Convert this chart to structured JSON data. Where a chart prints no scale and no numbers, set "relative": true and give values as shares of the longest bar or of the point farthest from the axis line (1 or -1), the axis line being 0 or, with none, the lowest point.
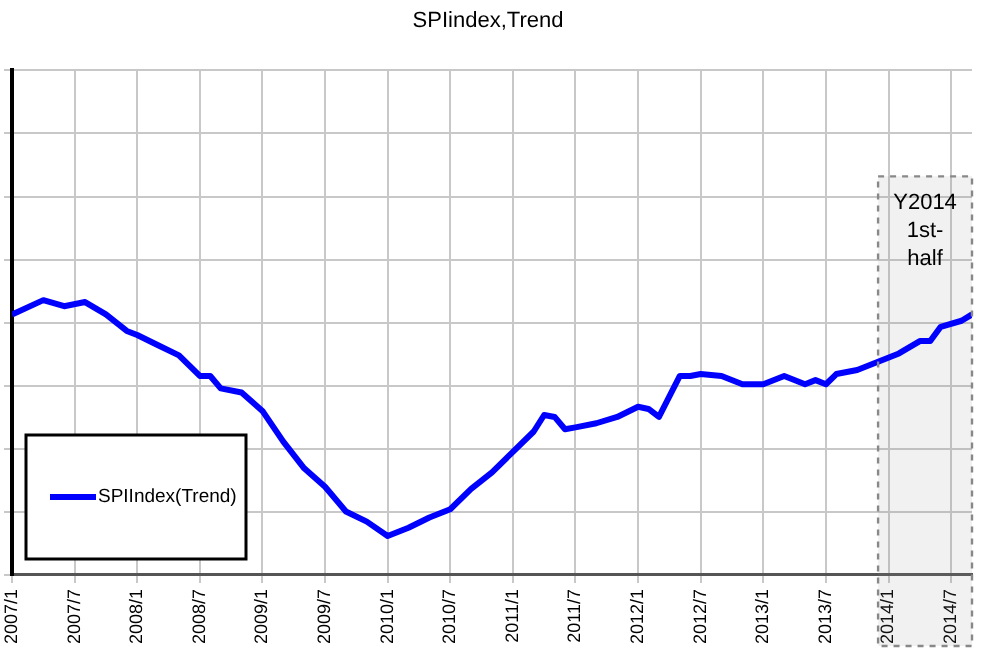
{
  "chart_data": {
    "type": "line",
    "title": "SPIindex,Trend",
    "relative": true,
    "grid": true,
    "legend": "bottom left",
    "marker": "none",
    "xlim": [
      "2007-01",
      "2014-09"
    ],
    "xticks": [
      {
        "value": "2007-01",
        "label": "2007/1"
      },
      {
        "value": "2007-07",
        "label": "2007/7"
      },
      {
        "value": "2008-01",
        "label": "2008/1"
      },
      {
        "value": "2008-07",
        "label": "2008/7"
      },
      {
        "value": "2009-01",
        "label": "2009/1"
      },
      {
        "value": "2009-07",
        "label": "2009/7"
      },
      {
        "value": "2010-01",
        "label": "2010/1"
      },
      {
        "value": "2010-07",
        "label": "2010/7"
      },
      {
        "value": "2011-01",
        "label": "2011/1"
      },
      {
        "value": "2011-07",
        "label": "2011/7"
      },
      {
        "value": "2012-01",
        "label": "2012/1"
      },
      {
        "value": "2012-07",
        "label": "2012/7"
      },
      {
        "value": "2013-01",
        "label": "2013/1"
      },
      {
        "value": "2013-07",
        "label": "2013/7"
      },
      {
        "value": "2014-01",
        "label": "2014/1"
      },
      {
        "value": "2014-07",
        "label": "2014/7"
      }
    ],
    "x": [
      "2007-01",
      "2007-04",
      "2007-06",
      "2007-08",
      "2007-10",
      "2007-12",
      "2008-01",
      "2008-03",
      "2008-05",
      "2008-07",
      "2008-08",
      "2008-09",
      "2008-11",
      "2009-01",
      "2009-03",
      "2009-05",
      "2009-07",
      "2009-09",
      "2009-11",
      "2010-01",
      "2010-03",
      "2010-05",
      "2010-07",
      "2010-09",
      "2010-11",
      "2011-01",
      "2011-03",
      "2011-04",
      "2011-05",
      "2011-06",
      "2011-07",
      "2011-09",
      "2011-11",
      "2012-01",
      "2012-02",
      "2012-03",
      "2012-05",
      "2012-06",
      "2012-07",
      "2012-09",
      "2012-11",
      "2013-01",
      "2013-03",
      "2013-05",
      "2013-06",
      "2013-07",
      "2013-08",
      "2013-10",
      "2013-12",
      "2014-02",
      "2014-04",
      "2014-05",
      "2014-06",
      "2014-08",
      "2014-09"
    ],
    "series": [
      {
        "name": "SPIIndex(Trend)",
        "color": "#0000ff",
        "values": [
          0.948,
          1,
          0.978,
          0.993,
          0.948,
          0.888,
          0.873,
          0.836,
          0.799,
          0.724,
          0.724,
          0.679,
          0.664,
          0.597,
          0.485,
          0.388,
          0.321,
          0.231,
          0.194,
          0.142,
          0.172,
          0.209,
          0.239,
          0.313,
          0.373,
          0.448,
          0.522,
          0.582,
          0.575,
          0.53,
          0.537,
          0.552,
          0.575,
          0.612,
          0.604,
          0.575,
          0.724,
          0.724,
          0.731,
          0.724,
          0.694,
          0.694,
          0.724,
          0.694,
          0.709,
          0.694,
          0.731,
          0.746,
          0.776,
          0.806,
          0.851,
          0.851,
          0.903,
          0.925,
          0.948
        ]
      }
    ],
    "bands": [
      {
        "axis": "x",
        "from": "2013-12",
        "to": "2014-09",
        "label": "Y2014 1st-half",
        "color": "#888888"
      }
    ]
  }
}
